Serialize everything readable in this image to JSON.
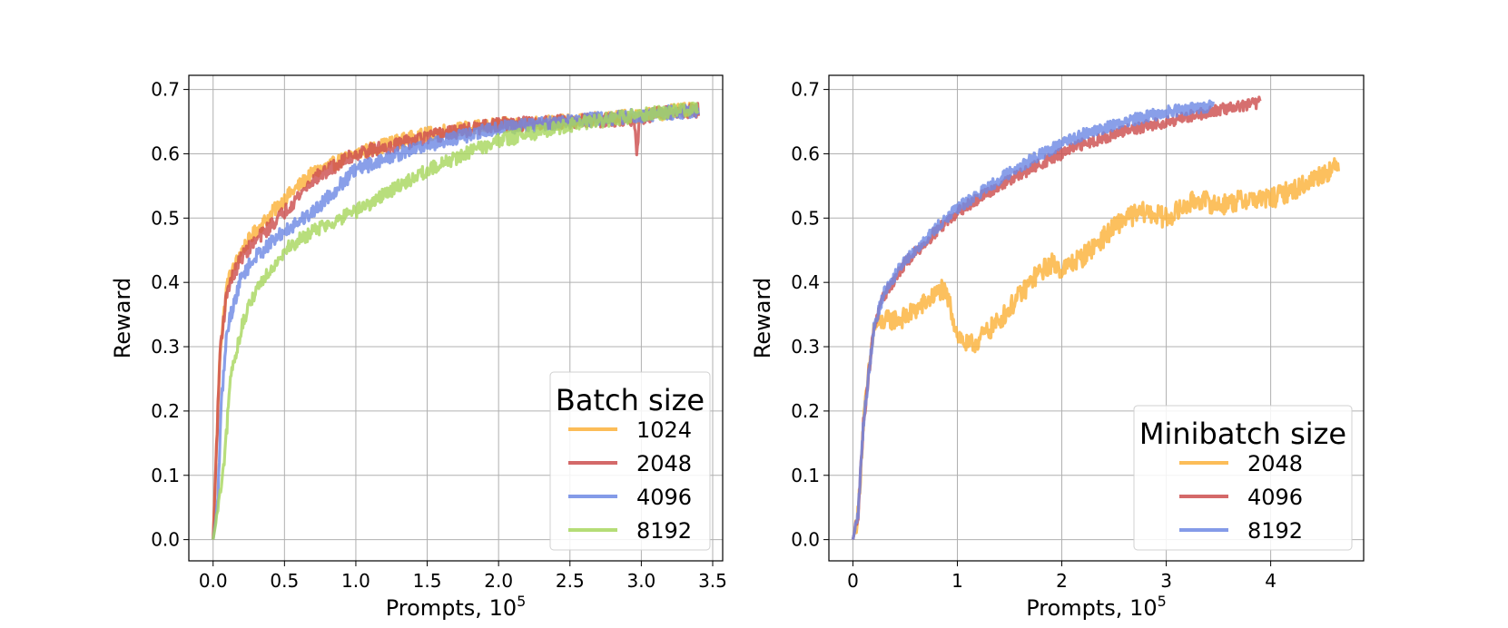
{
  "chart_data": [
    {
      "type": "line",
      "xlabel": "Prompts, 10",
      "xlabel_exp": "5",
      "ylabel": "Reward",
      "xlim": [
        -0.17,
        3.57
      ],
      "ylim": [
        -0.033,
        0.722
      ],
      "xticks": [
        0.0,
        0.5,
        1.0,
        1.5,
        2.0,
        2.5,
        3.0,
        3.5
      ],
      "xtick_labels": [
        "0.0",
        "0.5",
        "1.0",
        "1.5",
        "2.0",
        "2.5",
        "3.0",
        "3.5"
      ],
      "yticks": [
        0.0,
        0.1,
        0.2,
        0.3,
        0.4,
        0.5,
        0.6,
        0.7
      ],
      "ytick_labels": [
        "0.0",
        "0.1",
        "0.2",
        "0.3",
        "0.4",
        "0.5",
        "0.6",
        "0.7"
      ],
      "grid": true,
      "legend_title": "Batch size",
      "legend_position": "lower-right",
      "series": [
        {
          "name": "1024",
          "color": "#fbb23b",
          "x": [
            0,
            0.01,
            0.05,
            0.1,
            0.2,
            0.3,
            0.5,
            0.7,
            1.0,
            1.3,
            1.6,
            2.0,
            2.5,
            3.0,
            3.4
          ],
          "values": [
            0.0,
            0.06,
            0.3,
            0.4,
            0.45,
            0.48,
            0.53,
            0.57,
            0.6,
            0.62,
            0.635,
            0.645,
            0.65,
            0.66,
            0.67
          ],
          "noise": 0.011
        },
        {
          "name": "2048",
          "color": "#cd4f4f",
          "x": [
            0,
            0.01,
            0.05,
            0.1,
            0.2,
            0.3,
            0.5,
            0.7,
            1.0,
            1.3,
            1.6,
            2.0,
            2.5,
            2.95,
            2.97,
            2.99,
            3.05,
            3.4
          ],
          "values": [
            0.0,
            0.06,
            0.3,
            0.39,
            0.44,
            0.465,
            0.51,
            0.56,
            0.6,
            0.615,
            0.63,
            0.645,
            0.65,
            0.655,
            0.6,
            0.655,
            0.66,
            0.668
          ],
          "noise": 0.011
        },
        {
          "name": "4096",
          "color": "#6f8ae4",
          "x": [
            0,
            0.03,
            0.06,
            0.1,
            0.2,
            0.3,
            0.5,
            0.7,
            1.0,
            1.3,
            1.6,
            2.0,
            2.5,
            3.0,
            3.4
          ],
          "values": [
            0.0,
            0.05,
            0.22,
            0.33,
            0.41,
            0.44,
            0.48,
            0.51,
            0.575,
            0.6,
            0.62,
            0.64,
            0.65,
            0.66,
            0.668
          ],
          "noise": 0.011
        },
        {
          "name": "8192",
          "color": "#a8d75f",
          "x": [
            0,
            0.03,
            0.08,
            0.12,
            0.2,
            0.3,
            0.5,
            0.7,
            1.0,
            1.3,
            1.6,
            2.0,
            2.5,
            3.0,
            3.4
          ],
          "values": [
            0.0,
            0.04,
            0.12,
            0.25,
            0.33,
            0.39,
            0.45,
            0.48,
            0.51,
            0.55,
            0.585,
            0.62,
            0.645,
            0.66,
            0.672
          ],
          "noise": 0.011
        }
      ]
    },
    {
      "type": "line",
      "xlabel": "Prompts, 10",
      "xlabel_exp": "5",
      "ylabel": "Reward",
      "xlim": [
        -0.23,
        4.89
      ],
      "ylim": [
        -0.033,
        0.722
      ],
      "xticks": [
        0,
        1,
        2,
        3,
        4
      ],
      "xtick_labels": [
        "0",
        "1",
        "2",
        "3",
        "4"
      ],
      "yticks": [
        0.0,
        0.1,
        0.2,
        0.3,
        0.4,
        0.5,
        0.6,
        0.7
      ],
      "ytick_labels": [
        "0.0",
        "0.1",
        "0.2",
        "0.3",
        "0.4",
        "0.5",
        "0.6",
        "0.7"
      ],
      "grid": true,
      "legend_title": "Minibatch size",
      "legend_position": "lower-right",
      "series": [
        {
          "name": "2048",
          "color": "#fbb23b",
          "x": [
            0,
            0.05,
            0.1,
            0.2,
            0.3,
            0.5,
            0.75,
            0.85,
            0.92,
            1.0,
            1.1,
            1.2,
            1.4,
            1.6,
            1.75,
            1.9,
            2.0,
            2.2,
            2.4,
            2.6,
            2.8,
            3.0,
            3.3,
            3.5,
            3.8,
            4.0,
            4.3,
            4.5,
            4.65
          ],
          "values": [
            0.0,
            0.04,
            0.18,
            0.33,
            0.34,
            0.345,
            0.375,
            0.39,
            0.37,
            0.32,
            0.3,
            0.31,
            0.34,
            0.38,
            0.41,
            0.43,
            0.42,
            0.44,
            0.47,
            0.5,
            0.51,
            0.5,
            0.53,
            0.52,
            0.53,
            0.53,
            0.55,
            0.57,
            0.58
          ],
          "noise": 0.016
        },
        {
          "name": "4096",
          "color": "#cd4f4f",
          "x": [
            0,
            0.05,
            0.1,
            0.2,
            0.3,
            0.5,
            0.8,
            1.0,
            1.4,
            1.8,
            2.2,
            2.6,
            3.0,
            3.4,
            3.9
          ],
          "values": [
            0.0,
            0.04,
            0.18,
            0.33,
            0.38,
            0.43,
            0.48,
            0.51,
            0.55,
            0.585,
            0.615,
            0.635,
            0.65,
            0.665,
            0.68
          ],
          "noise": 0.009
        },
        {
          "name": "8192",
          "color": "#6f8ae4",
          "x": [
            0,
            0.05,
            0.1,
            0.2,
            0.3,
            0.5,
            0.8,
            1.0,
            1.4,
            1.8,
            2.2,
            2.6,
            3.0,
            3.45
          ],
          "values": [
            0.0,
            0.04,
            0.18,
            0.33,
            0.385,
            0.435,
            0.485,
            0.515,
            0.56,
            0.6,
            0.63,
            0.65,
            0.665,
            0.675
          ],
          "noise": 0.009
        }
      ]
    }
  ]
}
